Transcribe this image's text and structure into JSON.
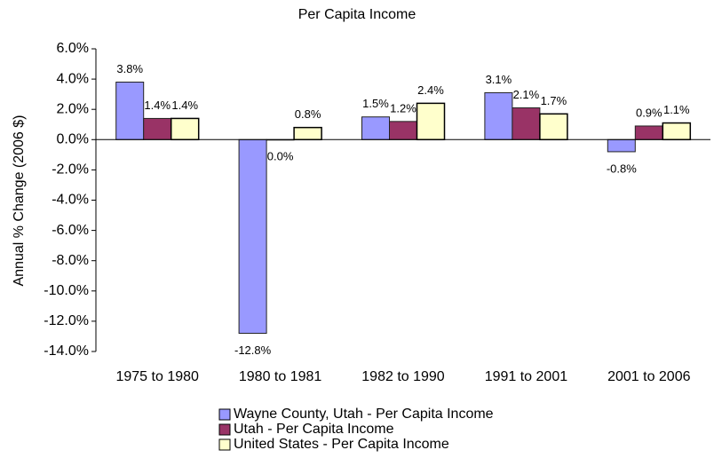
{
  "chart_data": {
    "type": "bar",
    "title": "Per Capita Income",
    "y_label": "Annual % Change (2006 $)",
    "categories": [
      "1975 to 1980",
      "1980 to 1981",
      "1982 to 1990",
      "1991 to 2001",
      "2001 to 2006"
    ],
    "series": [
      {
        "name": "Wayne County, Utah - Per Capita Income",
        "color": "#9999ff",
        "values": [
          3.8,
          -12.8,
          1.5,
          3.1,
          -0.8
        ],
        "value_labels": [
          "3.8%",
          "-12.8%",
          "1.5%",
          "3.1%",
          "-0.8%"
        ]
      },
      {
        "name": "Utah - Per Capita Income",
        "color": "#993366",
        "values": [
          1.4,
          0.0,
          1.2,
          2.1,
          0.9
        ],
        "value_labels": [
          "1.4%",
          "0.0%",
          "1.2%",
          "2.1%",
          "0.9%"
        ]
      },
      {
        "name": "United States - Per Capita Income",
        "color": "#ffffcc",
        "values": [
          1.4,
          0.8,
          2.4,
          1.7,
          1.1
        ],
        "value_labels": [
          "1.4%",
          "0.8%",
          "2.4%",
          "1.7%",
          "1.1%"
        ]
      }
    ],
    "ylim": [
      -14,
      6
    ],
    "yticks": [
      {
        "value": 6,
        "label": "6.0%"
      },
      {
        "value": 4,
        "label": "4.0%"
      },
      {
        "value": 2,
        "label": "2.0%"
      },
      {
        "value": 0,
        "label": "0.0%"
      },
      {
        "value": -2,
        "label": "-2.0%"
      },
      {
        "value": -4,
        "label": "-4.0%"
      },
      {
        "value": -6,
        "label": "-6.0%"
      },
      {
        "value": -8,
        "label": "-8.0%"
      },
      {
        "value": -10,
        "label": "-10.0%"
      },
      {
        "value": -12,
        "label": "-12.0%"
      },
      {
        "value": -14,
        "label": "-14.0%"
      }
    ],
    "grid": false,
    "legend_position": "bottom"
  }
}
